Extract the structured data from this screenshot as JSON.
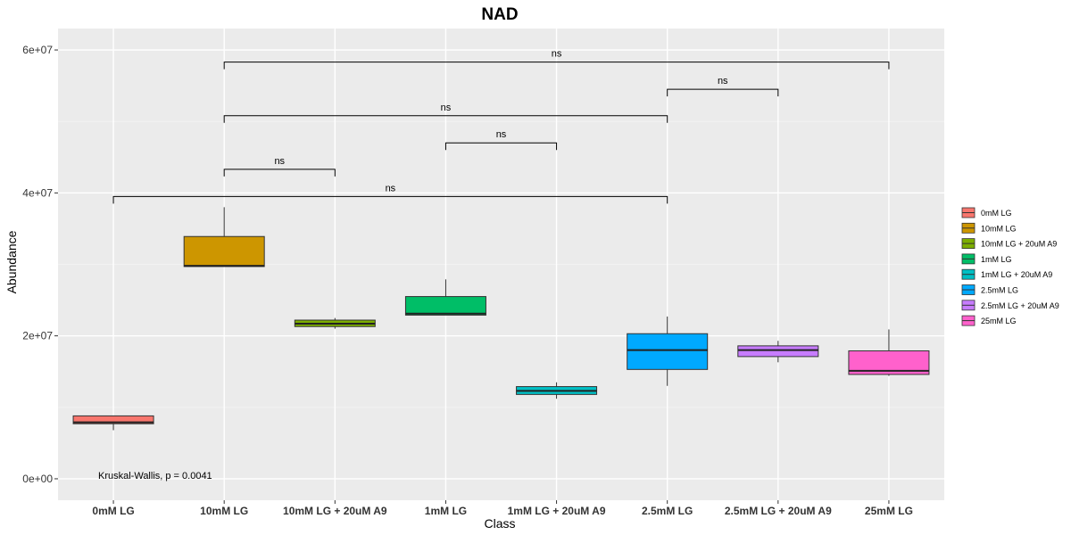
{
  "chart_data": {
    "type": "box",
    "title": "NAD",
    "xlabel": "Class",
    "ylabel": "Abundance",
    "ylim": [
      -3000000,
      63000000
    ],
    "yticks": [
      0,
      20000000,
      40000000,
      60000000
    ],
    "ytick_labels": [
      "0e+00",
      "2e+07",
      "4e+07",
      "6e+07"
    ],
    "categories": [
      "0mM LG",
      "10mM LG",
      "10mM LG + 20uM A9",
      "1mM LG",
      "1mM LG + 20uM A9",
      "2.5mM LG",
      "2.5mM LG + 20uM A9",
      "25mM LG"
    ],
    "boxes": [
      {
        "category": "0mM LG",
        "min": 6800000,
        "q1": 7700000,
        "median": 7900000,
        "q3": 8800000,
        "max": 8800000,
        "color": "#F8766D"
      },
      {
        "category": "10mM LG",
        "min": 29700000,
        "q1": 29700000,
        "median": 29800000,
        "q3": 33900000,
        "max": 38000000,
        "color": "#CD9600"
      },
      {
        "category": "10mM LG + 20uM A9",
        "min": 21000000,
        "q1": 21300000,
        "median": 21700000,
        "q3": 22200000,
        "max": 22500000,
        "color": "#7CAE00"
      },
      {
        "category": "1mM LG",
        "min": 22900000,
        "q1": 22900000,
        "median": 23100000,
        "q3": 25500000,
        "max": 27900000,
        "color": "#00BE67"
      },
      {
        "category": "1mM LG + 20uM A9",
        "min": 11200000,
        "q1": 11800000,
        "median": 12300000,
        "q3": 12900000,
        "max": 13500000,
        "color": "#00BFC4"
      },
      {
        "category": "2.5mM LG",
        "min": 13000000,
        "q1": 15300000,
        "median": 18000000,
        "q3": 20300000,
        "max": 22700000,
        "color": "#00A9FF"
      },
      {
        "category": "2.5mM LG + 20uM A9",
        "min": 16300000,
        "q1": 17100000,
        "median": 18000000,
        "q3": 18600000,
        "max": 19300000,
        "color": "#C77CFF"
      },
      {
        "category": "25mM LG",
        "min": 14400000,
        "q1": 14600000,
        "median": 15100000,
        "q3": 17900000,
        "max": 20900000,
        "color": "#FF61CC"
      }
    ],
    "comparisons": [
      {
        "from": "0mM LG",
        "to": "2.5mM LG",
        "y": 39500000,
        "label": "ns"
      },
      {
        "from": "10mM LG",
        "to": "10mM LG + 20uM A9",
        "y": 43300000,
        "label": "ns"
      },
      {
        "from": "1mM LG",
        "to": "1mM LG + 20uM A9",
        "y": 47000000,
        "label": "ns"
      },
      {
        "from": "10mM LG",
        "to": "2.5mM LG",
        "y": 50800000,
        "label": "ns"
      },
      {
        "from": "2.5mM LG",
        "to": "2.5mM LG + 20uM A9",
        "y": 54500000,
        "label": "ns"
      },
      {
        "from": "10mM LG",
        "to": "25mM LG",
        "y": 58300000,
        "label": "ns"
      }
    ],
    "annotation": "Kruskal-Wallis, p = 0.0041",
    "grid": true,
    "legend": {
      "position": "right",
      "entries": [
        "0mM LG",
        "10mM LG",
        "10mM LG + 20uM A9",
        "1mM LG",
        "1mM LG + 20uM A9",
        "2.5mM LG",
        "2.5mM LG + 20uM A9",
        "25mM LG"
      ]
    },
    "colors": {
      "panel_bg": "#EBEBEB",
      "grid_major": "#FFFFFF",
      "grid_minor": "#F4F4F4"
    }
  }
}
